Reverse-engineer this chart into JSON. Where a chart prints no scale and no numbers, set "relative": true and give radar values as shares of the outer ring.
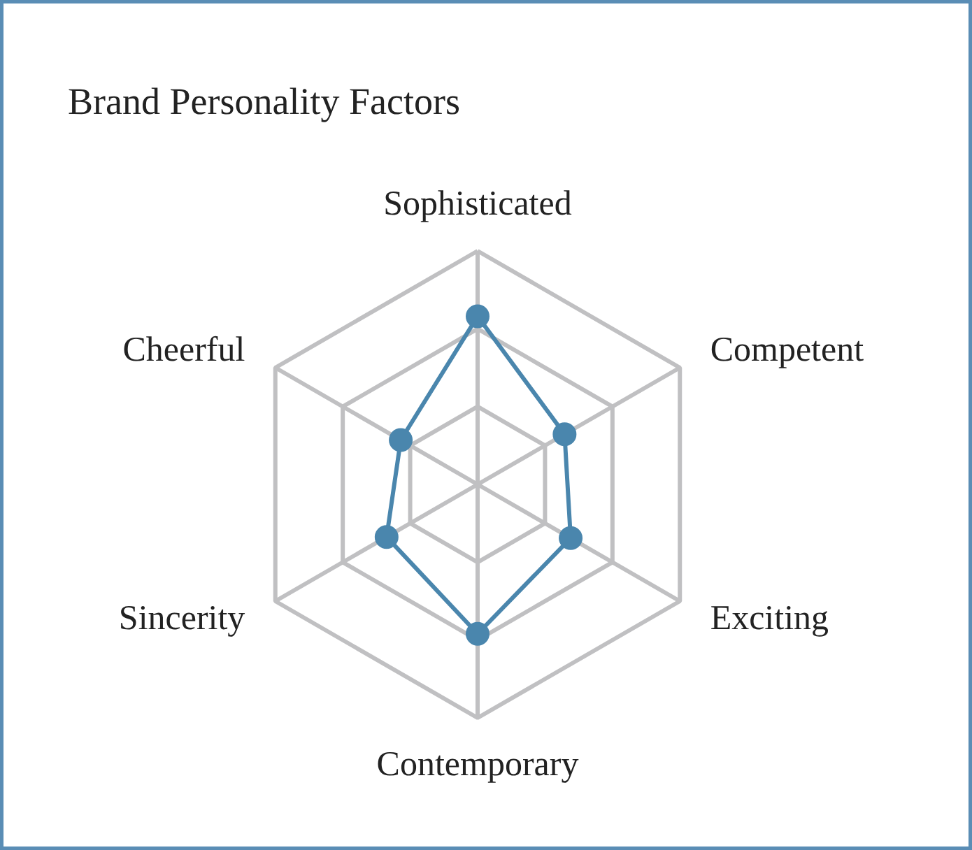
{
  "chart_data": {
    "type": "radar",
    "title": "Brand Personality Factors",
    "relative": true,
    "grid": true,
    "marker": "circle",
    "categories": [
      "Sophisticated",
      "Competent",
      "Exciting",
      "Contemporary",
      "Sincerity",
      "Cheerful"
    ],
    "series": [
      {
        "color": "#4a86ad",
        "values": [
          0.72,
          0.43,
          0.46,
          0.64,
          0.45,
          0.38
        ]
      }
    ]
  }
}
